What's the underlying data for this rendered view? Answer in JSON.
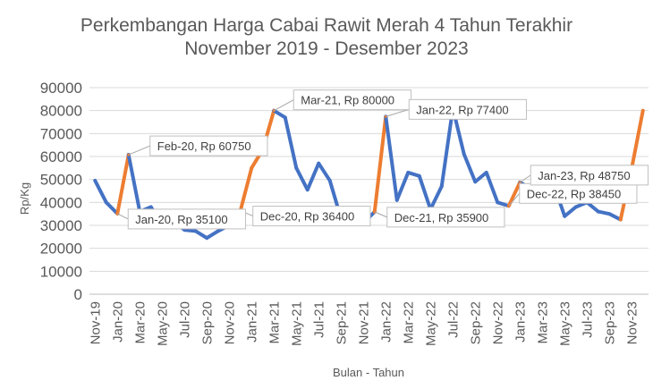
{
  "chart_data": {
    "type": "line",
    "title": "Perkembangan Harga Cabai Rawit Merah 4 Tahun Terakhir",
    "subtitle": "November 2019 - Desember 2023",
    "xlabel": "Bulan - Tahun",
    "ylabel": "Rp/Kg",
    "ylim": [
      0,
      90000
    ],
    "yticks": [
      "0",
      "10000",
      "20000",
      "30000",
      "40000",
      "50000",
      "60000",
      "70000",
      "80000",
      "90000"
    ],
    "grid": true,
    "x": [
      "Nov-19",
      "Dec-19",
      "Jan-20",
      "Feb-20",
      "Mar-20",
      "Apr-20",
      "May-20",
      "Jun-20",
      "Jul-20",
      "Aug-20",
      "Sep-20",
      "Oct-20",
      "Nov-20",
      "Dec-20",
      "Jan-21",
      "Feb-21",
      "Mar-21",
      "Apr-21",
      "May-21",
      "Jun-21",
      "Jul-21",
      "Aug-21",
      "Sep-21",
      "Oct-21",
      "Nov-21",
      "Dec-21",
      "Jan-22",
      "Feb-22",
      "Mar-22",
      "Apr-22",
      "May-22",
      "Jun-22",
      "Jul-22",
      "Aug-22",
      "Sep-22",
      "Oct-22",
      "Nov-22",
      "Dec-22",
      "Jan-23",
      "Feb-23",
      "Mar-23",
      "Apr-23",
      "May-23",
      "Jun-23",
      "Jul-23",
      "Aug-23",
      "Sep-23",
      "Oct-23",
      "Nov-23",
      "Dec-23"
    ],
    "x_tick_labels": [
      "Nov-19",
      "Jan-20",
      "Mar-20",
      "May-20",
      "Jul-20",
      "Sep-20",
      "Nov-20",
      "Jan-21",
      "Mar-21",
      "May-21",
      "Jul-21",
      "Sep-21",
      "Nov-21",
      "Jan-22",
      "Mar-22",
      "May-22",
      "Jul-22",
      "Sep-22",
      "Nov-22",
      "Jan-23",
      "Mar-23",
      "May-23",
      "Jul-23",
      "Sep-23",
      "Nov-23"
    ],
    "values": [
      49500,
      40000,
      35100,
      60750,
      36000,
      38000,
      30000,
      32000,
      28000,
      27500,
      24500,
      27500,
      30000,
      36400,
      55000,
      63000,
      80000,
      77000,
      55000,
      45500,
      57000,
      49500,
      33000,
      30500,
      31000,
      35900,
      77400,
      41000,
      53000,
      51500,
      37000,
      47000,
      81000,
      61000,
      49000,
      53000,
      40000,
      38450,
      48750,
      46000,
      53000,
      48000,
      34000,
      38000,
      40000,
      36000,
      35000,
      32500,
      55000,
      80000
    ],
    "colors": {
      "base": "#4472C4",
      "highlight": "#ED7D31"
    },
    "highlight_segments": [
      [
        2,
        3
      ],
      [
        13,
        16
      ],
      [
        25,
        26
      ],
      [
        37,
        38
      ],
      [
        47,
        49
      ]
    ],
    "annotations": [
      {
        "text": "Jan-20, Rp 35100",
        "index": 2
      },
      {
        "text": "Feb-20, Rp 60750",
        "index": 3
      },
      {
        "text": "Dec-20, Rp 36400",
        "index": 13
      },
      {
        "text": "Mar-21, Rp 80000",
        "index": 16
      },
      {
        "text": "Dec-21, Rp 35900",
        "index": 25
      },
      {
        "text": "Jan-22, Rp 77400",
        "index": 26
      },
      {
        "text": "Dec-22, Rp 38450",
        "index": 37
      },
      {
        "text": "Jan-23, Rp 48750",
        "index": 38
      }
    ]
  }
}
